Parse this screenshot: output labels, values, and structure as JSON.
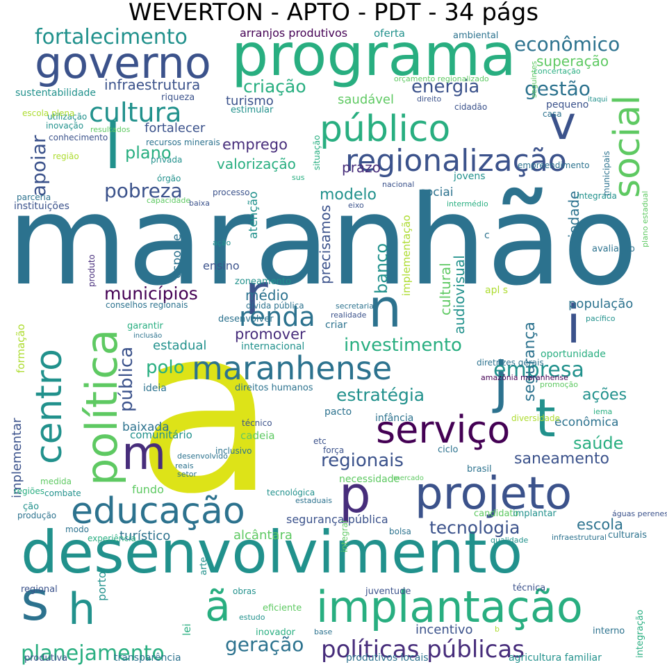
{
  "title": "WEVERTON - APTO - PDT - 34 págs",
  "palette": [
    "#440154",
    "#472d7b",
    "#3b528b",
    "#2c728e",
    "#21918c",
    "#28ae80",
    "#5ec962",
    "#addc30",
    "#dde318"
  ],
  "words": [
    {
      "text": "maranhão",
      "c": 3
    },
    {
      "text": "a",
      "c": 8
    },
    {
      "text": "desenvolvimento",
      "c": 4
    },
    {
      "text": "programa",
      "c": 5
    },
    {
      "text": "governo",
      "c": 2
    },
    {
      "text": "projeto",
      "c": 2
    },
    {
      "text": "implantação",
      "c": 5
    },
    {
      "text": "política",
      "c": 6
    },
    {
      "text": "centro",
      "c": 4
    },
    {
      "text": "maranhense",
      "c": 3
    },
    {
      "text": "educação",
      "c": 3
    },
    {
      "text": "público",
      "c": 5
    },
    {
      "text": "social",
      "c": 6
    },
    {
      "text": "regionalização",
      "c": 2
    },
    {
      "text": "serviço",
      "c": 0
    },
    {
      "text": "n",
      "c": 3
    },
    {
      "text": "t",
      "c": 4
    },
    {
      "text": "j",
      "c": 3
    },
    {
      "text": "i",
      "c": 2
    },
    {
      "text": "m",
      "c": 1
    },
    {
      "text": "v",
      "c": 2
    },
    {
      "text": "l",
      "c": 4
    },
    {
      "text": "r",
      "c": 2
    },
    {
      "text": "p",
      "c": 1
    },
    {
      "text": "s",
      "c": 3
    },
    {
      "text": "h",
      "c": 4
    },
    {
      "text": "ã",
      "c": 5
    },
    {
      "text": "renda",
      "c": 3
    },
    {
      "text": "cultura",
      "c": 4
    },
    {
      "text": "pobreza",
      "c": 2
    },
    {
      "text": "fortalecimento",
      "c": 4
    },
    {
      "text": "econômico",
      "c": 3
    },
    {
      "text": "gestão",
      "c": 3
    },
    {
      "text": "energia",
      "c": 2
    },
    {
      "text": "criação",
      "c": 5
    },
    {
      "text": "superação",
      "c": 6
    },
    {
      "text": "infraestrutura",
      "c": 2
    },
    {
      "text": "turismo",
      "c": 2
    },
    {
      "text": "saudável",
      "c": 6
    },
    {
      "text": "emprego",
      "c": 1
    },
    {
      "text": "plano",
      "c": 5
    },
    {
      "text": "valorização",
      "c": 5
    },
    {
      "text": "fortalecer",
      "c": 2
    },
    {
      "text": "apoiar",
      "c": 2
    },
    {
      "text": "municípios",
      "c": 0
    },
    {
      "text": "médio",
      "c": 3
    },
    {
      "text": "promover",
      "c": 1
    },
    {
      "text": "investimento",
      "c": 5
    },
    {
      "text": "empresa",
      "c": 4
    },
    {
      "text": "polo",
      "c": 5
    },
    {
      "text": "pública",
      "c": 2
    },
    {
      "text": "estratégia",
      "c": 4
    },
    {
      "text": "ações",
      "c": 4
    },
    {
      "text": "saúde",
      "c": 5
    },
    {
      "text": "regionais",
      "c": 2
    },
    {
      "text": "saneamento",
      "c": 2
    },
    {
      "text": "tecnologia",
      "c": 2
    },
    {
      "text": "escola",
      "c": 3
    },
    {
      "text": "alcântara",
      "c": 6
    },
    {
      "text": "turístico",
      "c": 3
    },
    {
      "text": "fundo",
      "c": 6
    },
    {
      "text": "baixada",
      "c": 3
    },
    {
      "text": "estadual",
      "c": 4
    },
    {
      "text": "modelo",
      "c": 4
    },
    {
      "text": "sociai",
      "c": 3
    },
    {
      "text": "banco",
      "c": 4
    },
    {
      "text": "precisamos",
      "c": 2
    },
    {
      "text": "ensino",
      "c": 2
    },
    {
      "text": "esporte",
      "c": 3
    },
    {
      "text": "atenção",
      "c": 4
    },
    {
      "text": "cultural",
      "c": 6
    },
    {
      "text": "audiovisual",
      "c": 4
    },
    {
      "text": "implementação",
      "c": 7
    },
    {
      "text": "segurança",
      "c": 3
    },
    {
      "text": "sociedade",
      "c": 3
    },
    {
      "text": "população",
      "c": 3
    },
    {
      "text": "econômica",
      "c": 3
    },
    {
      "text": "planejamento",
      "c": 5
    },
    {
      "text": "geração",
      "c": 3
    },
    {
      "text": "políticas públicas",
      "c": 1
    },
    {
      "text": "incentivo",
      "c": 2
    },
    {
      "text": "segurança pública",
      "c": 2
    },
    {
      "text": "implementar",
      "c": 2
    },
    {
      "text": "formação",
      "c": 7
    },
    {
      "text": "arranjos produtivos",
      "c": 0
    },
    {
      "text": "oferta",
      "c": 4
    },
    {
      "text": "ambiental",
      "c": 3
    },
    {
      "text": "sustentabilidade",
      "c": 4
    },
    {
      "text": "riqueza",
      "c": 2
    },
    {
      "text": "estimular",
      "c": 4
    },
    {
      "text": "utilização",
      "c": 4
    },
    {
      "text": "inovação",
      "c": 4
    },
    {
      "text": "escola plena",
      "c": 7
    },
    {
      "text": "conhecimento",
      "c": 2
    },
    {
      "text": "região",
      "c": 7
    },
    {
      "text": "parceria",
      "c": 3
    },
    {
      "text": "instituições",
      "c": 2
    },
    {
      "text": "recursos minerais",
      "c": 3
    },
    {
      "text": "privada",
      "c": 4
    },
    {
      "text": "órgão",
      "c": 4
    },
    {
      "text": "capacidade",
      "c": 6
    },
    {
      "text": "processo",
      "c": 2
    },
    {
      "text": "baixa",
      "c": 2
    },
    {
      "text": "situação",
      "c": 5
    },
    {
      "text": "sus",
      "c": 5
    },
    {
      "text": "nacional",
      "c": 2
    },
    {
      "text": "eixo",
      "c": 2
    },
    {
      "text": "intermédio",
      "c": 5
    },
    {
      "text": "integrada",
      "c": 4
    },
    {
      "text": "jovens",
      "c": 4
    },
    {
      "text": "empreendimento",
      "c": 3
    },
    {
      "text": "municipais",
      "c": 3
    },
    {
      "text": "plano estadual",
      "c": 6
    },
    {
      "text": "orçamento regionalizado",
      "c": 6
    },
    {
      "text": "direito",
      "c": 2
    },
    {
      "text": "cidadão",
      "c": 2
    },
    {
      "text": "pequeno",
      "c": 2
    },
    {
      "text": "casa",
      "c": 3
    },
    {
      "text": "itaqui",
      "c": 4
    },
    {
      "text": "concertação",
      "c": 5
    },
    {
      "text": "seguintes",
      "c": 6
    },
    {
      "text": "resultados",
      "c": 6
    },
    {
      "text": "prazo",
      "c": 1
    },
    {
      "text": "c",
      "c": 3
    },
    {
      "text": "avaliação",
      "c": 3
    },
    {
      "text": "ação",
      "c": 4
    },
    {
      "text": "produto",
      "c": 1
    },
    {
      "text": "zoneamento",
      "c": 4
    },
    {
      "text": "apl s",
      "c": 7
    },
    {
      "text": "conselhos regionais",
      "c": 3
    },
    {
      "text": "dívida pública",
      "c": 3
    },
    {
      "text": "secretaria",
      "c": 3
    },
    {
      "text": "realidade",
      "c": 2
    },
    {
      "text": "pacífico",
      "c": 4
    },
    {
      "text": "garantir",
      "c": 5
    },
    {
      "text": "desenvolver",
      "c": 3
    },
    {
      "text": "criar",
      "c": 3
    },
    {
      "text": "inclusão",
      "c": 3
    },
    {
      "text": "internacional",
      "c": 4
    },
    {
      "text": "oportunidade",
      "c": 5
    },
    {
      "text": "diretrizes gerais",
      "c": 3
    },
    {
      "text": "ideia",
      "c": 3
    },
    {
      "text": "direitos humanos",
      "c": 3
    },
    {
      "text": "amazônia maranhense",
      "c": 0
    },
    {
      "text": "promoção",
      "c": 6
    },
    {
      "text": "pacto",
      "c": 3
    },
    {
      "text": "infância",
      "c": 3
    },
    {
      "text": "diversidade",
      "c": 7
    },
    {
      "text": "iema",
      "c": 5
    },
    {
      "text": "comunitário",
      "c": 4
    },
    {
      "text": "técnico",
      "c": 2
    },
    {
      "text": "cadeia",
      "c": 6
    },
    {
      "text": "etc",
      "c": 2
    },
    {
      "text": "força",
      "c": 2
    },
    {
      "text": "ciclo",
      "c": 3
    },
    {
      "text": "inclusivo",
      "c": 3
    },
    {
      "text": "desenvolvido",
      "c": 3
    },
    {
      "text": "reais",
      "c": 3
    },
    {
      "text": "setor",
      "c": 3
    },
    {
      "text": "brasil",
      "c": 3
    },
    {
      "text": "necessidade",
      "c": 6
    },
    {
      "text": "mercado",
      "c": 6
    },
    {
      "text": "medida",
      "c": 6
    },
    {
      "text": "combate",
      "c": 4
    },
    {
      "text": "regiões",
      "c": 5
    },
    {
      "text": "ção",
      "c": 4
    },
    {
      "text": "produção",
      "c": 3
    },
    {
      "text": "tecnológica",
      "c": 4
    },
    {
      "text": "estaduais",
      "c": 3
    },
    {
      "text": "candidato",
      "c": 6
    },
    {
      "text": "implantar",
      "c": 4
    },
    {
      "text": "águas perenes",
      "c": 2
    },
    {
      "text": "modo",
      "c": 3
    },
    {
      "text": "experiência",
      "c": 5
    },
    {
      "text": "bolsa",
      "c": 3
    },
    {
      "text": "qualidade",
      "c": 4
    },
    {
      "text": "infraestrutural",
      "c": 3
    },
    {
      "text": "culturais",
      "c": 3
    },
    {
      "text": "integral",
      "c": 6
    },
    {
      "text": "arte",
      "c": 4
    },
    {
      "text": "porto",
      "c": 4
    },
    {
      "text": "obras",
      "c": 4
    },
    {
      "text": "juventude",
      "c": 2
    },
    {
      "text": "técnica",
      "c": 2
    },
    {
      "text": "regional",
      "c": 2
    },
    {
      "text": "eficiente",
      "c": 6
    },
    {
      "text": "lei",
      "c": 5
    },
    {
      "text": "estudo",
      "c": 4
    },
    {
      "text": "inovador",
      "c": 5
    },
    {
      "text": "base",
      "c": 3
    },
    {
      "text": "b",
      "c": 7
    },
    {
      "text": "interno",
      "c": 3
    },
    {
      "text": "integração",
      "c": 5
    },
    {
      "text": "produtiva",
      "c": 2
    },
    {
      "text": "transparência",
      "c": 3
    },
    {
      "text": "produtivos locais",
      "c": 3
    },
    {
      "text": "agricultura familiar",
      "c": 4
    },
    {
      "text": "cooperação internacional",
      "c": 6
    }
  ]
}
